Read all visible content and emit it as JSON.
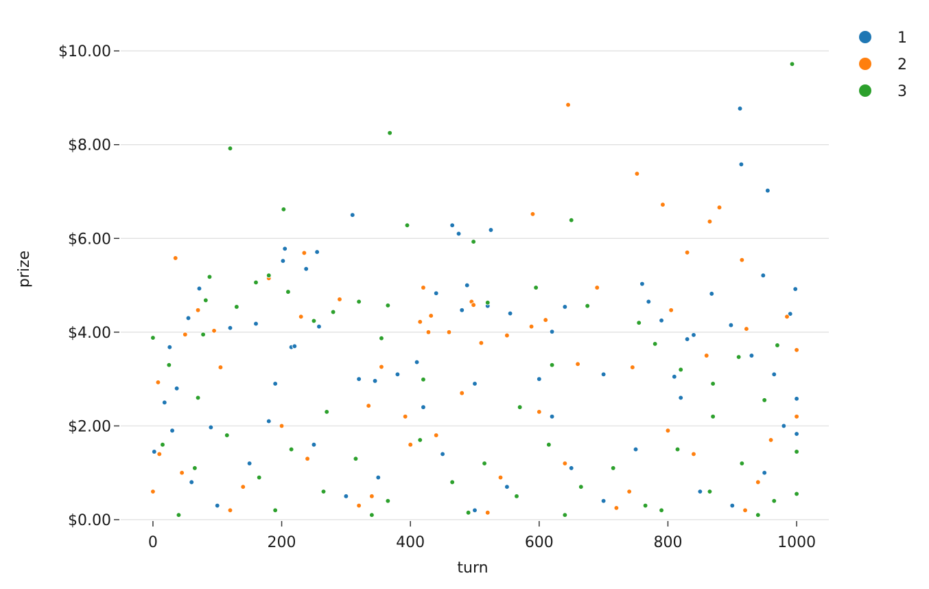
{
  "chart_data": {
    "type": "scatter",
    "title": "",
    "xlabel": "turn",
    "ylabel": "prize",
    "xlim": [
      -50,
      1050
    ],
    "ylim": [
      0,
      10.5
    ],
    "xticks": [
      0,
      200,
      400,
      600,
      800,
      1000
    ],
    "xtick_labels": [
      "0",
      "200",
      "400",
      "600",
      "800",
      "1000"
    ],
    "yticks": [
      0,
      2,
      4,
      6,
      8,
      10
    ],
    "ytick_labels": [
      "$0.00",
      "$2.00",
      "$4.00",
      "$6.00",
      "$8.00",
      "$10.00"
    ],
    "grid": "horizontal",
    "legend_position": "top-right, outside plot",
    "series": [
      {
        "name": "1",
        "color": "#1f77b4",
        "points": [
          [
            2,
            1.45
          ],
          [
            18,
            2.5
          ],
          [
            26,
            3.68
          ],
          [
            37,
            2.8
          ],
          [
            55,
            4.3
          ],
          [
            72,
            4.93
          ],
          [
            90,
            1.97
          ],
          [
            120,
            4.09
          ],
          [
            160,
            4.18
          ],
          [
            190,
            2.9
          ],
          [
            202,
            5.52
          ],
          [
            205,
            5.78
          ],
          [
            215,
            3.68
          ],
          [
            220,
            3.7
          ],
          [
            238,
            5.35
          ],
          [
            255,
            5.71
          ],
          [
            258,
            4.12
          ],
          [
            310,
            6.5
          ],
          [
            320,
            3.0
          ],
          [
            345,
            2.96
          ],
          [
            380,
            3.1
          ],
          [
            410,
            3.36
          ],
          [
            440,
            4.83
          ],
          [
            465,
            6.28
          ],
          [
            475,
            6.1
          ],
          [
            480,
            4.47
          ],
          [
            488,
            5.0
          ],
          [
            500,
            2.9
          ],
          [
            520,
            4.56
          ],
          [
            525,
            6.18
          ],
          [
            555,
            4.4
          ],
          [
            600,
            3.0
          ],
          [
            620,
            4.01
          ],
          [
            640,
            4.54
          ],
          [
            700,
            3.1
          ],
          [
            760,
            5.03
          ],
          [
            770,
            4.65
          ],
          [
            790,
            4.25
          ],
          [
            810,
            3.05
          ],
          [
            830,
            3.85
          ],
          [
            840,
            3.94
          ],
          [
            868,
            4.82
          ],
          [
            898,
            4.15
          ],
          [
            912,
            8.77
          ],
          [
            914,
            7.58
          ],
          [
            930,
            3.5
          ],
          [
            948,
            5.21
          ],
          [
            955,
            7.02
          ],
          [
            965,
            3.1
          ],
          [
            990,
            4.39
          ],
          [
            998,
            4.92
          ],
          [
            1000,
            2.58
          ],
          [
            1000,
            1.83
          ],
          [
            60,
            0.8
          ],
          [
            150,
            1.2
          ],
          [
            250,
            1.6
          ],
          [
            350,
            0.9
          ],
          [
            450,
            1.4
          ],
          [
            550,
            0.7
          ],
          [
            650,
            1.1
          ],
          [
            750,
            1.5
          ],
          [
            850,
            0.6
          ],
          [
            950,
            1.0
          ],
          [
            100,
            0.3
          ],
          [
            300,
            0.5
          ],
          [
            500,
            0.2
          ],
          [
            700,
            0.4
          ],
          [
            900,
            0.3
          ],
          [
            180,
            2.1
          ],
          [
            420,
            2.4
          ],
          [
            620,
            2.2
          ],
          [
            820,
            2.6
          ],
          [
            30,
            1.9
          ],
          [
            980,
            2.0
          ]
        ]
      },
      {
        "name": "2",
        "color": "#ff7f0e",
        "points": [
          [
            0,
            0.6
          ],
          [
            8,
            2.93
          ],
          [
            35,
            5.58
          ],
          [
            50,
            3.95
          ],
          [
            70,
            4.47
          ],
          [
            95,
            4.03
          ],
          [
            105,
            3.25
          ],
          [
            180,
            5.15
          ],
          [
            230,
            4.33
          ],
          [
            235,
            5.69
          ],
          [
            290,
            4.7
          ],
          [
            335,
            2.43
          ],
          [
            355,
            3.26
          ],
          [
            392,
            2.2
          ],
          [
            415,
            4.22
          ],
          [
            420,
            4.95
          ],
          [
            428,
            4.0
          ],
          [
            432,
            4.35
          ],
          [
            460,
            4.0
          ],
          [
            495,
            4.65
          ],
          [
            498,
            4.58
          ],
          [
            510,
            3.77
          ],
          [
            550,
            3.93
          ],
          [
            590,
            6.52
          ],
          [
            588,
            4.12
          ],
          [
            610,
            4.26
          ],
          [
            645,
            8.85
          ],
          [
            660,
            3.32
          ],
          [
            690,
            4.95
          ],
          [
            745,
            3.25
          ],
          [
            752,
            7.38
          ],
          [
            792,
            6.72
          ],
          [
            805,
            4.47
          ],
          [
            830,
            5.7
          ],
          [
            860,
            3.5
          ],
          [
            865,
            6.36
          ],
          [
            880,
            6.66
          ],
          [
            915,
            5.54
          ],
          [
            922,
            4.07
          ],
          [
            985,
            4.33
          ],
          [
            1000,
            3.62
          ],
          [
            1000,
            2.2
          ],
          [
            45,
            1.0
          ],
          [
            140,
            0.7
          ],
          [
            240,
            1.3
          ],
          [
            340,
            0.5
          ],
          [
            440,
            1.8
          ],
          [
            540,
            0.9
          ],
          [
            640,
            1.2
          ],
          [
            740,
            0.6
          ],
          [
            840,
            1.4
          ],
          [
            940,
            0.8
          ],
          [
            120,
            0.2
          ],
          [
            320,
            0.3
          ],
          [
            520,
            0.15
          ],
          [
            720,
            0.25
          ],
          [
            920,
            0.2
          ],
          [
            200,
            2.0
          ],
          [
            400,
            1.6
          ],
          [
            600,
            2.3
          ],
          [
            800,
            1.9
          ],
          [
            960,
            1.7
          ],
          [
            10,
            1.4
          ],
          [
            480,
            2.7
          ]
        ]
      },
      {
        "name": "3",
        "color": "#2ca02c",
        "points": [
          [
            0,
            3.88
          ],
          [
            25,
            3.3
          ],
          [
            78,
            3.95
          ],
          [
            82,
            4.68
          ],
          [
            88,
            5.18
          ],
          [
            120,
            7.92
          ],
          [
            130,
            4.54
          ],
          [
            160,
            5.06
          ],
          [
            180,
            5.21
          ],
          [
            203,
            6.62
          ],
          [
            210,
            4.86
          ],
          [
            250,
            4.24
          ],
          [
            280,
            4.43
          ],
          [
            320,
            4.65
          ],
          [
            355,
            3.87
          ],
          [
            368,
            8.25
          ],
          [
            365,
            4.57
          ],
          [
            395,
            6.28
          ],
          [
            420,
            2.99
          ],
          [
            520,
            4.63
          ],
          [
            498,
            5.93
          ],
          [
            595,
            4.95
          ],
          [
            650,
            6.39
          ],
          [
            675,
            4.56
          ],
          [
            755,
            4.2
          ],
          [
            780,
            3.75
          ],
          [
            820,
            3.2
          ],
          [
            870,
            2.9
          ],
          [
            910,
            3.47
          ],
          [
            950,
            2.55
          ],
          [
            970,
            3.72
          ],
          [
            993,
            9.72
          ],
          [
            1000,
            1.45
          ],
          [
            1000,
            0.55
          ],
          [
            15,
            1.6
          ],
          [
            65,
            1.1
          ],
          [
            115,
            1.8
          ],
          [
            165,
            0.9
          ],
          [
            215,
            1.5
          ],
          [
            265,
            0.6
          ],
          [
            315,
            1.3
          ],
          [
            365,
            0.4
          ],
          [
            415,
            1.7
          ],
          [
            465,
            0.8
          ],
          [
            515,
            1.2
          ],
          [
            565,
            0.5
          ],
          [
            615,
            1.6
          ],
          [
            665,
            0.7
          ],
          [
            715,
            1.1
          ],
          [
            765,
            0.3
          ],
          [
            815,
            1.5
          ],
          [
            865,
            0.6
          ],
          [
            915,
            1.2
          ],
          [
            965,
            0.4
          ],
          [
            40,
            0.1
          ],
          [
            190,
            0.2
          ],
          [
            340,
            0.1
          ],
          [
            490,
            0.15
          ],
          [
            640,
            0.1
          ],
          [
            790,
            0.2
          ],
          [
            940,
            0.1
          ],
          [
            270,
            2.3
          ],
          [
            570,
            2.4
          ],
          [
            870,
            2.2
          ],
          [
            70,
            2.6
          ],
          [
            620,
            3.3
          ]
        ]
      }
    ]
  }
}
